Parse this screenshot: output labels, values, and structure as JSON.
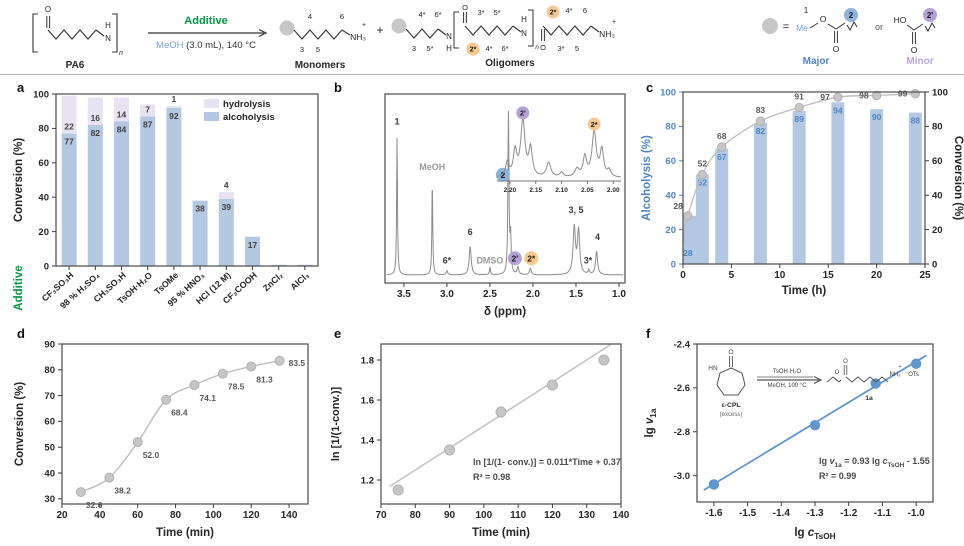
{
  "colors": {
    "bar_blue": "#b3c8e2",
    "lavender": "#e8e3f2",
    "blue_text": "#4f86c6",
    "axis_dark": "#3a3a3a",
    "gray_line": "#bdbdbd",
    "gray_marker": "#c6c6c6",
    "green": "#009a44",
    "meoh_blue": "#7b9fd4",
    "major_blue": "#4f86c6",
    "minor_purple": "#b7a6db",
    "circle_gray": "#c6c6c6",
    "circle_blue": "#8cb4dd",
    "circle_purple": "#b3a0d6",
    "circle_orange": "#f8c98f",
    "fit_blue": "#5e96cf",
    "label_gray": "#9a9a9a",
    "value_dark": "#3f3f3f"
  },
  "scheme": {
    "pa6": "PA6",
    "additive": "Additive",
    "solvent": "MeOH",
    "conditions": " (3.0 mL), 140 °C",
    "plus": "+",
    "monomers": "Monomers",
    "oligomers": "Oligomers",
    "atom_o": "O",
    "atom_n": "N",
    "atom_h": "H",
    "nh3": "NH₃",
    "sup_plus": "+",
    "sub_n": "n",
    "monomer_nums": [
      "3",
      "4",
      "5",
      "6"
    ],
    "olig_left_nums": [
      "3",
      "4*",
      "5*",
      "6*"
    ],
    "olig_mid_nums": [
      "2*",
      "3*",
      "4*",
      "5*",
      "6*"
    ],
    "olig_right_nums": [
      "2*",
      "3*",
      "4*",
      "5",
      "6"
    ],
    "defs": {
      "eq": "=",
      "one": "1",
      "me": "Me",
      "o": "O",
      "two": "2",
      "or": "or",
      "ho": "HO",
      "two_prime": "2'",
      "major": "Major",
      "minor": "Minor"
    }
  },
  "panels": {
    "a": {
      "label": "a",
      "chart_data": {
        "type": "bar",
        "stacked": true,
        "categories": [
          "CF₃SO₃H",
          "98 % H₂SO₄",
          "CH₃SO₃H",
          "TsOH·H₂O",
          "TsOMe",
          "95 % HNO₃",
          "HCl (12 M)",
          "CF₃COOH",
          "ZnCl₂",
          "AlCl₃"
        ],
        "series": [
          {
            "name": "alcoholysis",
            "values": [
              77,
              82,
              84,
              87,
              92,
              38,
              39,
              17,
              0,
              0
            ]
          },
          {
            "name": "hydrolysis",
            "values": [
              22,
              16,
              14,
              7,
              1,
              0,
              4,
              0,
              0,
              0
            ]
          }
        ],
        "ylabel": "Conversion  (%)",
        "xlabel": "Additive",
        "ylim": [
          0,
          100
        ],
        "yticks": [
          0,
          20,
          40,
          60,
          80,
          100
        ],
        "legend": [
          "hydrolysis",
          "alcoholysis"
        ],
        "legend_position": "top-right"
      }
    },
    "b": {
      "label": "b",
      "chart_data": {
        "type": "line",
        "kind": "nmr-spectrum",
        "xlabel": "δ (ppm)",
        "xlim": [
          3.72,
          0.93
        ],
        "x_reversed": true,
        "xticks": [
          3.5,
          3.0,
          2.5,
          2.0,
          1.5,
          1.0
        ],
        "peaks": [
          [
            3.58,
            0.82,
            0.006
          ],
          [
            3.17,
            0.56,
            0.006
          ],
          [
            3.0,
            0.025,
            0.01
          ],
          [
            2.73,
            0.17,
            0.014
          ],
          [
            2.5,
            0.045,
            0.007
          ],
          [
            2.285,
            0.98,
            0.007
          ],
          [
            2.26,
            0.22,
            0.008
          ],
          [
            2.175,
            0.045,
            0.012
          ],
          [
            2.03,
            0.04,
            0.012
          ],
          [
            1.52,
            0.28,
            0.016
          ],
          [
            1.47,
            0.26,
            0.016
          ],
          [
            1.35,
            0.025,
            0.01
          ],
          [
            1.26,
            0.14,
            0.014
          ]
        ],
        "annotations": [
          {
            "t": "1",
            "ppm": 3.58,
            "y": 0.9
          },
          {
            "t": "MeOH",
            "ppm": 3.17,
            "y": 0.63,
            "gray": 1
          },
          {
            "t": "6*",
            "ppm": 3.0,
            "y": 0.07
          },
          {
            "t": "6",
            "ppm": 2.73,
            "y": 0.24
          },
          {
            "t": "DMSO",
            "ppm": 2.5,
            "y": 0.07,
            "gray": 1
          },
          {
            "t": "2",
            "ppm": 2.35,
            "y": 0.6,
            "circle": "blue"
          },
          {
            "t": "2'",
            "ppm": 2.21,
            "y": 0.1,
            "circle": "purple"
          },
          {
            "t": "2*",
            "ppm": 2.02,
            "y": 0.1,
            "circle": "orange"
          },
          {
            "t": "3, 5",
            "ppm": 1.5,
            "y": 0.37
          },
          {
            "t": "3*",
            "ppm": 1.36,
            "y": 0.07
          },
          {
            "t": "4",
            "ppm": 1.25,
            "y": 0.21
          }
        ],
        "inset": {
          "xlim": [
            2.225,
            1.985
          ],
          "xticks": [
            2.2,
            2.15,
            2.1,
            2.05,
            2.0
          ],
          "peaks": [
            [
              2.205,
              0.22,
              0.004
            ],
            [
              2.19,
              0.38,
              0.004
            ],
            [
              2.175,
              0.85,
              0.005
            ],
            [
              2.16,
              0.42,
              0.004
            ],
            [
              2.125,
              0.22,
              0.005
            ],
            [
              2.1,
              0.07,
              0.004
            ],
            [
              2.07,
              0.12,
              0.005
            ],
            [
              2.055,
              0.3,
              0.004
            ],
            [
              2.037,
              0.68,
              0.005
            ],
            [
              2.022,
              0.4,
              0.004
            ],
            [
              2.008,
              0.1,
              0.004
            ]
          ],
          "annotations": [
            {
              "t": "2'",
              "ppm": 2.175,
              "circle": "purple"
            },
            {
              "t": "2*",
              "ppm": 2.037,
              "circle": "orange"
            }
          ]
        }
      }
    },
    "c": {
      "label": "c",
      "chart_data": {
        "type": "bar+line",
        "x": [
          0.5,
          2,
          4,
          8,
          12,
          16,
          20,
          24
        ],
        "series": [
          {
            "name": "Alcoholysis (%)",
            "kind": "bar",
            "values": [
              28,
              52,
              67,
              82,
              89,
              94,
              90,
              88
            ]
          },
          {
            "name": "Conversion (%)",
            "kind": "line",
            "values": [
              28,
              52,
              68,
              83,
              91,
              97,
              98,
              99
            ]
          }
        ],
        "xlabel": "Time (h)",
        "ylabel_left": "Alcoholysis (%)",
        "ylabel_right": "Conversion  (%)",
        "xlim": [
          0,
          25
        ],
        "xticks": [
          0,
          5,
          10,
          15,
          20,
          25
        ],
        "ylim": [
          0,
          100
        ],
        "yticks": [
          0,
          20,
          40,
          60,
          80,
          100
        ]
      }
    },
    "d": {
      "label": "d",
      "chart_data": {
        "type": "scatter+line",
        "x": [
          30,
          45,
          60,
          75,
          90,
          105,
          120,
          135
        ],
        "y": [
          32.6,
          38.2,
          52.0,
          68.4,
          74.1,
          78.5,
          81.3,
          83.5
        ],
        "point_labels": [
          "32.6",
          "38.2",
          "52.0",
          "68.4",
          "74.1",
          "78.5",
          "81.3",
          "83.5"
        ],
        "xlabel": "Time (min)",
        "ylabel": "Conversion  (%)",
        "xlim": [
          20,
          150
        ],
        "xticks": [
          20,
          40,
          60,
          80,
          100,
          120,
          140
        ],
        "ylim": [
          28,
          90
        ],
        "yticks": [
          30,
          40,
          50,
          60,
          70,
          80,
          90
        ]
      }
    },
    "e": {
      "label": "e",
      "chart_data": {
        "type": "scatter+fit",
        "x": [
          75,
          90,
          105,
          120,
          135
        ],
        "y": [
          1.15,
          1.35,
          1.54,
          1.675,
          1.8
        ],
        "fit": {
          "slope": 0.011,
          "intercept": 0.37,
          "x0": 72.5,
          "x1": 137
        },
        "equation": "ln [1/(1- conv.)] = 0.011*Time + 0.37",
        "r2": "R² = 0.98",
        "xlabel": "Time (min)",
        "ylabel": "ln [1/(1-conv.)]",
        "xlim": [
          70,
          140
        ],
        "xticks": [
          70,
          80,
          90,
          100,
          110,
          120,
          130,
          140
        ],
        "ylim": [
          1.08,
          1.88
        ],
        "yticks": [
          1.2,
          1.4,
          1.6,
          1.8
        ]
      }
    },
    "f": {
      "label": "f",
      "chart_data": {
        "type": "scatter+fit",
        "x": [
          -1.6,
          -1.3,
          -1.12,
          -1.0
        ],
        "y": [
          -3.04,
          -2.77,
          -2.58,
          -2.49
        ],
        "fit": {
          "slope": 0.93,
          "intercept": -1.55,
          "x0": -1.63,
          "x1": -0.97
        },
        "equation_segments": [
          {
            "t": "lg "
          },
          {
            "t": "v",
            "i": 1
          },
          {
            "t": "1a",
            "s": 1
          },
          {
            "t": " = 0.93 lg "
          },
          {
            "t": "c",
            "i": 1
          },
          {
            "t": "TsOH",
            "s": 1
          },
          {
            "t": " - 1.55"
          }
        ],
        "r2": "R² = 0.99",
        "xlabel_segments": [
          {
            "t": "lg "
          },
          {
            "t": "c",
            "i": 1
          },
          {
            "t": "TsOH",
            "s": 1
          }
        ],
        "ylabel_segments": [
          {
            "t": "lg "
          },
          {
            "t": "v",
            "i": 1
          },
          {
            "t": "1a",
            "s": 1
          }
        ],
        "xlim": [
          -1.65,
          -0.95
        ],
        "xticks": [
          -1.6,
          -1.5,
          -1.4,
          -1.3,
          -1.2,
          -1.1,
          -1.0
        ],
        "ylim": [
          -3.12,
          -2.4
        ],
        "yticks": [
          -2.4,
          -2.6,
          -2.8,
          -3.0
        ],
        "inset": {
          "hn": "HN",
          "o": "O",
          "name": "ε-CPL",
          "excess": "(excess)",
          "cond_top": "TsOH·H₂O",
          "cond_bot": "MeOH, 100 °C",
          "product": "1a",
          "nh3": "NH₃",
          "plus": "+",
          "ots": "⁻OTs"
        }
      }
    }
  }
}
